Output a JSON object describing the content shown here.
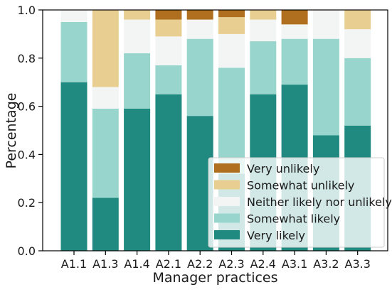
{
  "chart_data": {
    "type": "bar",
    "stacked": true,
    "xlabel": "Manager practices",
    "ylabel": "Percentage",
    "ylim": [
      0,
      1.0
    ],
    "yticks": [
      "0.0",
      "0.2",
      "0.4",
      "0.6",
      "0.8",
      "1.0"
    ],
    "ytick_values": [
      0,
      0.2,
      0.4,
      0.6,
      0.8,
      1.0
    ],
    "grid": false,
    "legend_position": "lower-right",
    "categories": [
      "A1.1",
      "A1.3",
      "A1.4",
      "A2.1",
      "A2.2",
      "A2.3",
      "A2.4",
      "A3.1",
      "A3.2",
      "A3.3"
    ],
    "series": [
      {
        "name": "Very likely",
        "color": "#218a80",
        "values": [
          0.7,
          0.22,
          0.59,
          0.65,
          0.56,
          0.32,
          0.65,
          0.69,
          0.48,
          0.52
        ]
      },
      {
        "name": "Somewhat likely",
        "color": "#98d6cd",
        "values": [
          0.25,
          0.37,
          0.23,
          0.12,
          0.32,
          0.44,
          0.22,
          0.19,
          0.4,
          0.28
        ]
      },
      {
        "name": "Neither likely nor unlikely",
        "color": "#f3f4f4",
        "values": [
          0.05,
          0.09,
          0.14,
          0.12,
          0.08,
          0.14,
          0.09,
          0.06,
          0.12,
          0.12
        ]
      },
      {
        "name": "Somewhat unlikely",
        "color": "#e8cf91",
        "values": [
          0.0,
          0.32,
          0.04,
          0.07,
          0.0,
          0.07,
          0.04,
          0.0,
          0.0,
          0.08
        ]
      },
      {
        "name": "Very unlikely",
        "color": "#b06f1f",
        "values": [
          0.0,
          0.0,
          0.0,
          0.04,
          0.04,
          0.03,
          0.0,
          0.06,
          0.0,
          0.0
        ]
      }
    ],
    "legend_order": [
      "Very unlikely",
      "Somewhat unlikely",
      "Neither likely nor unlikely",
      "Somewhat likely",
      "Very likely"
    ]
  }
}
